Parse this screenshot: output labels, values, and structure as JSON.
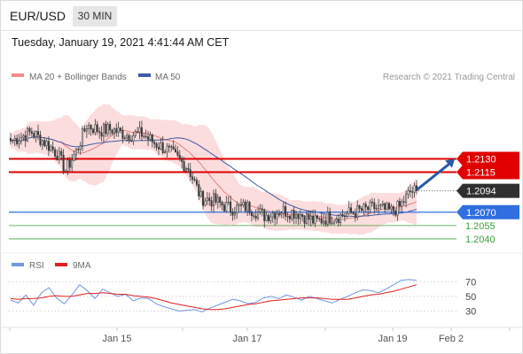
{
  "header": {
    "symbol": "EUR/USD",
    "interval": "30 MIN",
    "datetime": "Tuesday, January 19, 2021 4:41:44 AM CET"
  },
  "legend": {
    "ma20_label": "MA 20 + Bollinger Bands",
    "ma50_label": "MA 50",
    "copyright": "Research © 2021 Trading Central",
    "rsi_label": "RSI",
    "rsi_ma_label": "9MA"
  },
  "colors": {
    "candle": "#3a3a3a",
    "bollinger_fill": "#fbd7d7",
    "ma20": "#e87f7f",
    "ma50": "#3b5ba5",
    "resistance": "#e00000",
    "pivot": "#2f6fe0",
    "support": "#3aa03a",
    "current": "#2f2f2f",
    "arrow": "#2b5aa8",
    "rsi": "#6f96e0",
    "rsi_ma": "#e02020"
  },
  "chart_data": [
    {
      "type": "candlestick",
      "title": "EUR/USD",
      "x_ticks": [
        "Jan 15",
        "Jan 17",
        "Jan 19",
        "Feb 2"
      ],
      "ylim": [
        1.2028,
        1.2212
      ],
      "levels": [
        {
          "value": 1.213,
          "label": "1.2130",
          "kind": "resistance"
        },
        {
          "value": 1.2115,
          "label": "1.2115",
          "kind": "resistance"
        },
        {
          "value": 1.2094,
          "label": "1.2094",
          "kind": "current"
        },
        {
          "value": 1.207,
          "label": "1.2070",
          "kind": "pivot"
        },
        {
          "value": 1.2055,
          "label": "1.2055",
          "kind": "support"
        },
        {
          "value": 1.204,
          "label": "1.2040",
          "kind": "support"
        }
      ],
      "arrow": {
        "from": 1.2094,
        "to": 1.213,
        "direction": "up"
      },
      "anchors": [
        {
          "i": 0,
          "close": 1.215
        },
        {
          "i": 10,
          "close": 1.216
        },
        {
          "i": 17,
          "close": 1.2147
        },
        {
          "i": 22,
          "close": 1.2136
        },
        {
          "i": 26,
          "close": 1.2117
        },
        {
          "i": 31,
          "close": 1.2138
        },
        {
          "i": 36,
          "close": 1.2168
        },
        {
          "i": 42,
          "close": 1.2162
        },
        {
          "i": 48,
          "close": 1.2163
        },
        {
          "i": 55,
          "close": 1.2157
        },
        {
          "i": 62,
          "close": 1.2158
        },
        {
          "i": 68,
          "close": 1.2148
        },
        {
          "i": 74,
          "close": 1.214
        },
        {
          "i": 80,
          "close": 1.2128
        },
        {
          "i": 84,
          "close": 1.212
        },
        {
          "i": 90,
          "close": 1.2086
        },
        {
          "i": 96,
          "close": 1.2083
        },
        {
          "i": 104,
          "close": 1.2074
        },
        {
          "i": 112,
          "close": 1.2076
        },
        {
          "i": 120,
          "close": 1.2066
        },
        {
          "i": 128,
          "close": 1.2072
        },
        {
          "i": 136,
          "close": 1.2069
        },
        {
          "i": 144,
          "close": 1.2059
        },
        {
          "i": 150,
          "close": 1.2064
        },
        {
          "i": 156,
          "close": 1.2066
        },
        {
          "i": 164,
          "close": 1.2071
        },
        {
          "i": 172,
          "close": 1.2075
        },
        {
          "i": 180,
          "close": 1.2071
        },
        {
          "i": 184,
          "close": 1.2076
        },
        {
          "i": 189,
          "close": 1.2093
        },
        {
          "i": 192,
          "close": 1.2094
        }
      ]
    },
    {
      "type": "line",
      "title": "RSI",
      "y_ticks": [
        70,
        50,
        30
      ],
      "ylim": [
        10,
        85
      ],
      "series": [
        {
          "name": "RSI",
          "values": [
            45,
            41,
            52,
            38,
            55,
            62,
            48,
            40,
            52,
            66,
            58,
            47,
            60,
            55,
            50,
            53,
            44,
            48,
            47,
            40,
            36,
            33,
            30,
            31,
            32,
            29,
            34,
            38,
            42,
            46,
            44,
            40,
            42,
            48,
            50,
            47,
            52,
            49,
            45,
            50,
            47,
            44,
            41,
            46,
            50,
            55,
            59,
            58,
            55,
            60,
            66,
            72,
            73,
            72
          ]
        },
        {
          "name": "9MA",
          "values": [
            47,
            46,
            47,
            47,
            48,
            50,
            51,
            50,
            50,
            52,
            54,
            54,
            55,
            54,
            53,
            53,
            51,
            50,
            49,
            47,
            44,
            41,
            39,
            37,
            35,
            33,
            32,
            32,
            33,
            35,
            37,
            39,
            40,
            42,
            44,
            45,
            46,
            47,
            48,
            48,
            48,
            47,
            46,
            46,
            46,
            48,
            50,
            52,
            53,
            55,
            57,
            60,
            63,
            66
          ]
        }
      ]
    }
  ]
}
